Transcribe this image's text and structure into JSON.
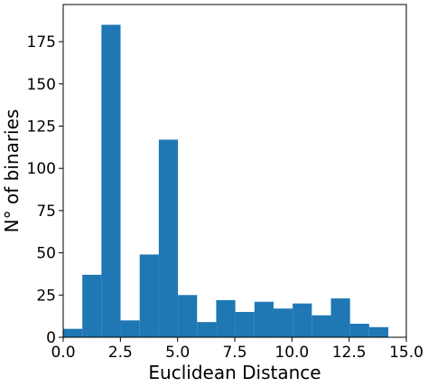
{
  "chart_data": {
    "type": "bar",
    "subtype": "histogram",
    "bin_edges": [
      0.0,
      0.836,
      1.672,
      2.508,
      3.344,
      4.18,
      5.016,
      5.852,
      6.688,
      7.524,
      8.36,
      9.196,
      10.032,
      10.868,
      11.704,
      12.54,
      13.376,
      14.212
    ],
    "values": [
      5,
      37,
      185,
      10,
      49,
      117,
      25,
      9,
      22,
      15,
      21,
      17,
      20,
      13,
      23,
      8,
      6
    ],
    "title": "",
    "xlabel": "Euclidean Distance",
    "ylabel": "N° of binaries",
    "xlim": [
      0.0,
      15.0
    ],
    "ylim": [
      0,
      197
    ],
    "xticks": [
      "0.0",
      "2.5",
      "5.0",
      "7.5",
      "10.0",
      "12.5",
      "15.0"
    ],
    "yticks": [
      "0",
      "25",
      "50",
      "75",
      "100",
      "125",
      "150",
      "175"
    ],
    "grid": false,
    "bar_color": "#1f77b4"
  }
}
